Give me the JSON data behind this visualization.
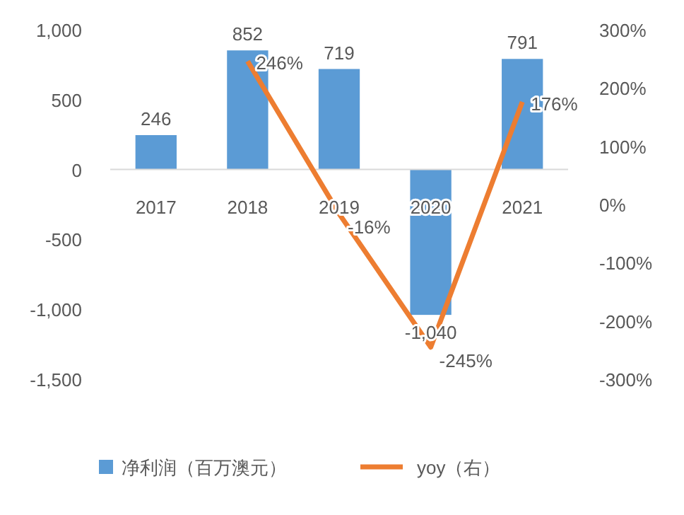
{
  "chart_data": {
    "type": "bar",
    "categories": [
      "2017",
      "2018",
      "2019",
      "2020",
      "2021"
    ],
    "series": [
      {
        "name": "净利润（百万澳元）",
        "color": "#5b9bd5",
        "values": [
          246,
          852,
          719,
          -1040,
          791
        ],
        "value_labels": [
          "246",
          "852",
          "719",
          "-1,040",
          "791"
        ]
      },
      {
        "name": "yoy（右）",
        "type": "line",
        "axis": "y2",
        "color": "#ed7d31",
        "values": [
          null,
          246,
          -16,
          -245,
          176
        ],
        "value_labels": [
          null,
          "246%",
          "-16%",
          "-245%",
          "176%"
        ]
      }
    ],
    "ylim": [
      -1500,
      1000
    ],
    "yticks": [
      {
        "value": -1500,
        "label": "-1,500"
      },
      {
        "value": -1000,
        "label": "-1,000"
      },
      {
        "value": -500,
        "label": "-500"
      },
      0,
      500,
      {
        "value": 1000,
        "label": "1,000"
      }
    ],
    "y2lim": [
      -300,
      300
    ],
    "y2ticks": [
      {
        "value": -300,
        "label": "-300%"
      },
      {
        "value": -200,
        "label": "-200%"
      },
      {
        "value": -100,
        "label": "-100%"
      },
      {
        "value": 0,
        "label": "0%"
      },
      {
        "value": 100,
        "label": "100%"
      },
      {
        "value": 200,
        "label": "200%"
      },
      {
        "value": 300,
        "label": "300%"
      }
    ],
    "legend": "bottom",
    "grid": false,
    "marker": "none",
    "line_style": "solid"
  }
}
